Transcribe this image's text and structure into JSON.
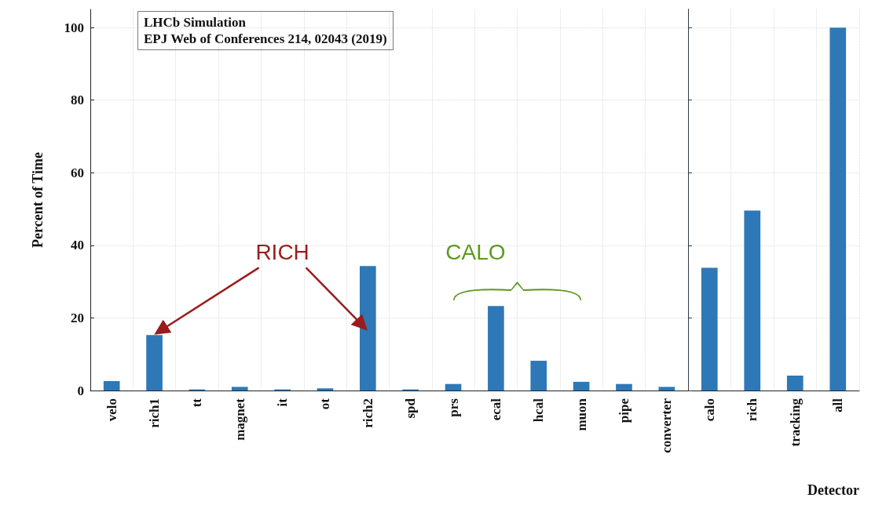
{
  "chart_data": [
    {
      "type": "bar",
      "title": "LHCb Simulation",
      "subtitle": "EPJ Web of Conferences 214, 02043 (2019)",
      "ylabel": "Percent of Time",
      "categories": [
        "velo",
        "rich1",
        "tt",
        "magnet",
        "it",
        "ot",
        "rich2",
        "spd",
        "prs",
        "ecal",
        "hcal",
        "muon",
        "pipe",
        "converter"
      ],
      "values": [
        2.6,
        15.3,
        0.3,
        1.0,
        0.3,
        0.6,
        34.3,
        0.3,
        1.8,
        23.3,
        8.2,
        2.4,
        1.8,
        1.0
      ],
      "color": "#2e78b7",
      "ylim": [
        0,
        105
      ],
      "yticks": [
        0,
        20,
        40,
        60,
        80,
        100
      ],
      "grid": true,
      "annotations": [
        {
          "text": "RICH",
          "x": "rich1",
          "y": 15.3
        },
        "CALO"
      ]
    },
    {
      "type": "bar",
      "xlabel": "Detector",
      "categories": [
        "calo",
        "rich",
        "tracking",
        "all"
      ],
      "values": [
        33.8,
        49.6,
        4.1,
        100
      ],
      "color": "#2e78b7",
      "ylim": [
        0,
        105
      ],
      "yticks": [
        0,
        20,
        40,
        60,
        80,
        100
      ],
      "grid": true,
      "tick_labels": "x"
    }
  ]
}
